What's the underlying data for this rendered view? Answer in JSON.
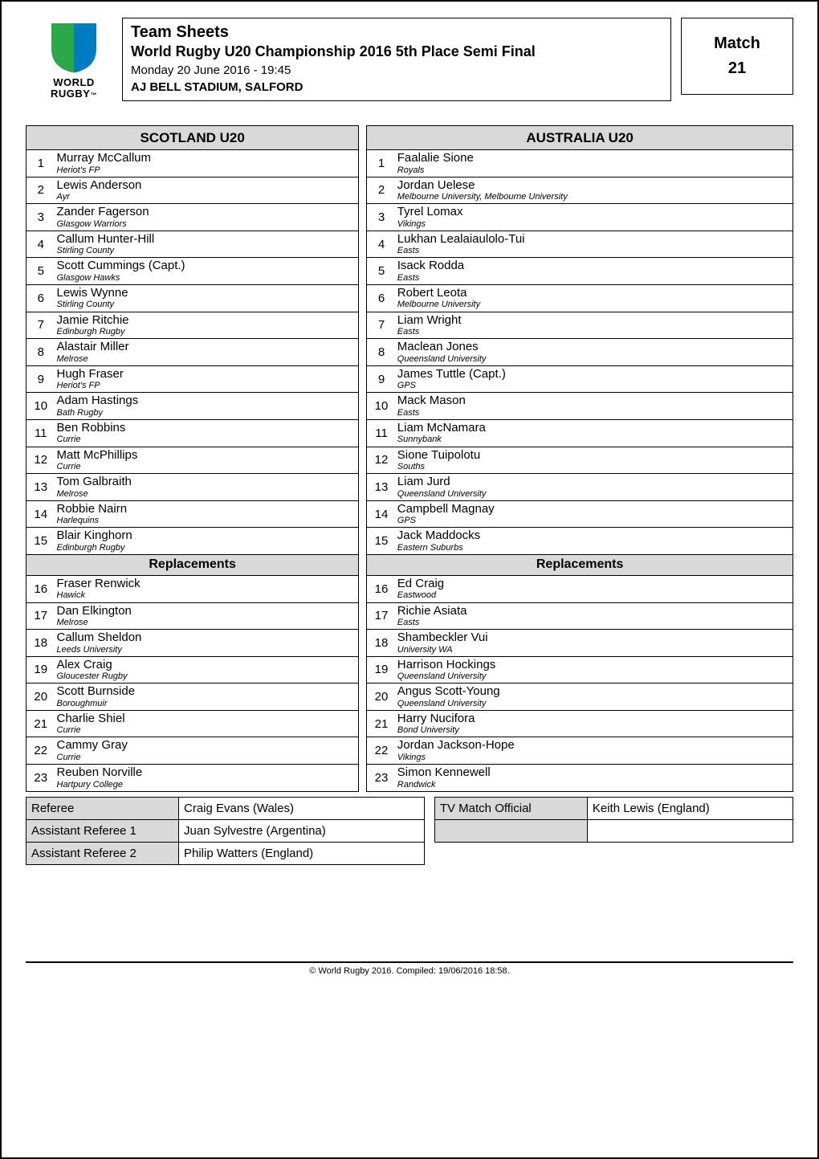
{
  "logo": {
    "line1": "WORLD",
    "line2": "RUGBY",
    "colors": {
      "left": "#2aa84a",
      "right": "#007cc3"
    }
  },
  "header": {
    "title1": "Team Sheets",
    "title2": "World Rugby U20 Championship 2016 5th Place Semi Final",
    "dateline": "Monday 20 June 2016 - 19:45",
    "venue": "AJ BELL STADIUM, SALFORD",
    "match_label": "Match",
    "match_number": "21"
  },
  "sections": {
    "replacements_heading": "Replacements"
  },
  "teams": {
    "scotland": {
      "name": "SCOTLAND U20",
      "starters": [
        {
          "num": "1",
          "name": "Murray McCallum",
          "club": "Heriot's FP"
        },
        {
          "num": "2",
          "name": "Lewis Anderson",
          "club": "Ayr"
        },
        {
          "num": "3",
          "name": "Zander Fagerson",
          "club": "Glasgow Warriors"
        },
        {
          "num": "4",
          "name": "Callum Hunter-Hill",
          "club": "Stirling County"
        },
        {
          "num": "5",
          "name": "Scott Cummings (Capt.)",
          "club": "Glasgow Hawks"
        },
        {
          "num": "6",
          "name": "Lewis Wynne",
          "club": "Stirling County"
        },
        {
          "num": "7",
          "name": "Jamie Ritchie",
          "club": "Edinburgh Rugby"
        },
        {
          "num": "8",
          "name": "Alastair Miller",
          "club": "Melrose"
        },
        {
          "num": "9",
          "name": "Hugh Fraser",
          "club": "Heriot's FP"
        },
        {
          "num": "10",
          "name": "Adam Hastings",
          "club": "Bath Rugby"
        },
        {
          "num": "11",
          "name": "Ben Robbins",
          "club": "Currie"
        },
        {
          "num": "12",
          "name": "Matt McPhillips",
          "club": "Currie"
        },
        {
          "num": "13",
          "name": "Tom Galbraith",
          "club": "Melrose"
        },
        {
          "num": "14",
          "name": "Robbie Nairn",
          "club": "Harlequins"
        },
        {
          "num": "15",
          "name": "Blair Kinghorn",
          "club": "Edinburgh Rugby"
        }
      ],
      "replacements": [
        {
          "num": "16",
          "name": "Fraser Renwick",
          "club": "Hawick"
        },
        {
          "num": "17",
          "name": "Dan Elkington",
          "club": "Melrose"
        },
        {
          "num": "18",
          "name": "Callum Sheldon",
          "club": "Leeds University"
        },
        {
          "num": "19",
          "name": "Alex Craig",
          "club": "Gloucester Rugby"
        },
        {
          "num": "20",
          "name": "Scott Burnside",
          "club": "Boroughmuir"
        },
        {
          "num": "21",
          "name": "Charlie Shiel",
          "club": "Currie"
        },
        {
          "num": "22",
          "name": "Cammy Gray",
          "club": "Currie"
        },
        {
          "num": "23",
          "name": "Reuben Norville",
          "club": "Hartpury College"
        }
      ]
    },
    "australia": {
      "name": "AUSTRALIA U20",
      "starters": [
        {
          "num": "1",
          "name": "Faalalie Sione",
          "club": "Royals"
        },
        {
          "num": "2",
          "name": "Jordan  Uelese",
          "club": "Melbourne University, Melbourne University"
        },
        {
          "num": "3",
          "name": "Tyrel Lomax",
          "club": "Vikings"
        },
        {
          "num": "4",
          "name": "Lukhan Lealaiaulolo-Tui",
          "club": "Easts"
        },
        {
          "num": "5",
          "name": "Isack  Rodda",
          "club": "Easts"
        },
        {
          "num": "6",
          "name": "Robert Leota",
          "club": "Melbourne University"
        },
        {
          "num": "7",
          "name": "Liam Wright",
          "club": "Easts"
        },
        {
          "num": "8",
          "name": "Maclean Jones",
          "club": "Queensland University"
        },
        {
          "num": "9",
          "name": "James Tuttle (Capt.)",
          "club": "GPS"
        },
        {
          "num": "10",
          "name": "Mack Mason",
          "club": "Easts"
        },
        {
          "num": "11",
          "name": "Liam McNamara",
          "club": "Sunnybank"
        },
        {
          "num": "12",
          "name": "Sione Tuipolotu",
          "club": "Souths"
        },
        {
          "num": "13",
          "name": "Liam Jurd",
          "club": "Queensland University"
        },
        {
          "num": "14",
          "name": "Campbell Magnay",
          "club": "GPS"
        },
        {
          "num": "15",
          "name": "Jack Maddocks",
          "club": "Eastern Suburbs"
        }
      ],
      "replacements": [
        {
          "num": "16",
          "name": "Ed Craig",
          "club": "Eastwood"
        },
        {
          "num": "17",
          "name": "Richie Asiata",
          "club": "Easts"
        },
        {
          "num": "18",
          "name": "Shambeckler Vui",
          "club": "University WA"
        },
        {
          "num": "19",
          "name": "Harrison Hockings",
          "club": "Queensland University"
        },
        {
          "num": "20",
          "name": "Angus Scott-Young",
          "club": "Queensland University"
        },
        {
          "num": "21",
          "name": "Harry Nucifora",
          "club": "Bond University"
        },
        {
          "num": "22",
          "name": "Jordan Jackson-Hope",
          "club": "Vikings"
        },
        {
          "num": "23",
          "name": "Simon Kennewell",
          "club": "Randwick"
        }
      ]
    }
  },
  "officials": {
    "labels": {
      "referee": "Referee",
      "ar1": "Assistant Referee 1",
      "ar2": "Assistant Referee 2",
      "tmo": "TV Match Official"
    },
    "referee": "Craig Evans (Wales)",
    "ar1": "Juan Sylvestre (Argentina)",
    "ar2": "Philip Watters (England)",
    "tmo": "Keith Lewis (England)"
  },
  "footer": "© World Rugby 2016. Compiled: 19/06/2016 18:58."
}
